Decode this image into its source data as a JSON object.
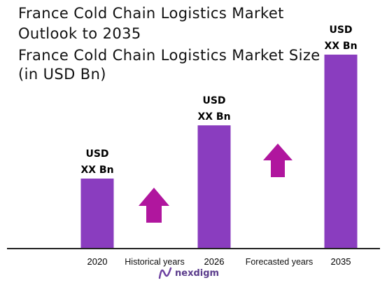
{
  "title": "France Cold Chain Logistics Market Outlook to 2035",
  "subtitle": "France Cold Chain Logistics Market Size (in USD Bn)",
  "brand": "nexdigm",
  "colors": {
    "bar": "#8a3dbf",
    "arrow": "#b0169e",
    "axis": "#222222"
  },
  "chart_data": {
    "type": "bar",
    "categories": [
      "2020",
      "2026",
      "2035"
    ],
    "values": [
      100,
      176,
      277
    ],
    "value_note": "relative bar heights; actual values not shown",
    "data_labels": [
      {
        "line1": "USD",
        "line2": "XX Bn"
      },
      {
        "line1": "USD",
        "line2": "XX Bn"
      },
      {
        "line1": "USD",
        "line2": "XX Bn"
      }
    ],
    "period_labels": [
      "Historical years",
      "Forecasted years"
    ],
    "ylim": [
      0,
      277
    ],
    "legend": "none",
    "grid": false
  }
}
